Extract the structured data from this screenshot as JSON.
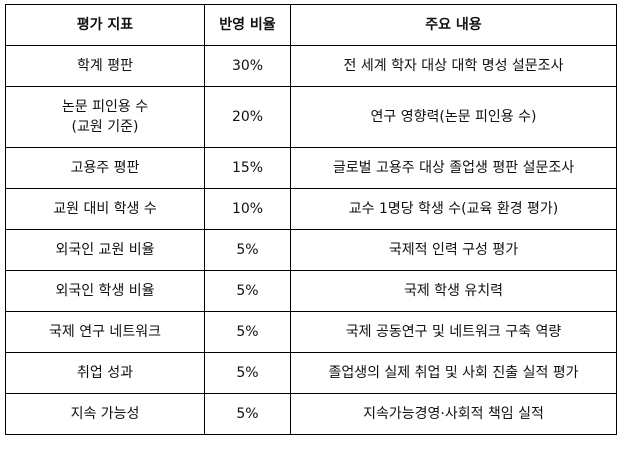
{
  "table": {
    "headers": [
      "평가 지표",
      "반영 비율",
      "주요 내용"
    ],
    "rows": [
      {
        "indicator": "학계 평판",
        "ratio": "30%",
        "content": "전 세계 학자 대상 대학 명성 설문조사"
      },
      {
        "indicator_line1": "논문 피인용 수",
        "indicator_line2": "(교원 기준)",
        "ratio": "20%",
        "content": "연구 영향력(논문 피인용 수)"
      },
      {
        "indicator": "고용주 평판",
        "ratio": "15%",
        "content": "글로벌 고용주 대상 졸업생 평판 설문조사"
      },
      {
        "indicator": "교원 대비 학생 수",
        "ratio": "10%",
        "content": "교수 1명당 학생 수(교육 환경 평가)"
      },
      {
        "indicator": "외국인 교원 비율",
        "ratio": "5%",
        "content": "국제적 인력 구성 평가"
      },
      {
        "indicator": "외국인 학생 비율",
        "ratio": "5%",
        "content": "국제 학생 유치력"
      },
      {
        "indicator": "국제 연구 네트워크",
        "ratio": "5%",
        "content": "국제 공동연구 및 네트워크 구축 역량"
      },
      {
        "indicator": "취업 성과",
        "ratio": "5%",
        "content": "졸업생의 실제 취업 및 사회 진출 실적 평가"
      },
      {
        "indicator": "지속 가능성",
        "ratio": "5%",
        "content": "지속가능경영·사회적 책임 실적"
      }
    ]
  }
}
